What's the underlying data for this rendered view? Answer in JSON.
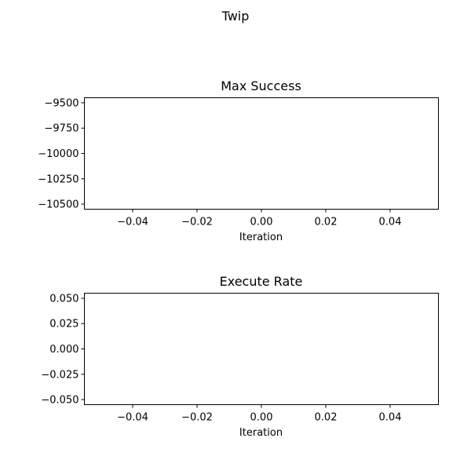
{
  "figure": {
    "title": "Twip"
  },
  "chart_data": [
    {
      "type": "line",
      "title": "Max Success",
      "xlabel": "Iteration",
      "ylabel": "",
      "xlim": [
        -0.055,
        0.055
      ],
      "ylim": [
        -10550,
        -9450
      ],
      "xticks": [
        -0.04,
        -0.02,
        0.0,
        0.02,
        0.04
      ],
      "xtick_labels": [
        "−0.04",
        "−0.02",
        "0.00",
        "0.02",
        "0.04"
      ],
      "yticks": [
        -9500,
        -9750,
        -10000,
        -10250,
        -10500
      ],
      "ytick_labels": [
        "−9500",
        "−9750",
        "−10000",
        "−10250",
        "−10500"
      ],
      "series": [],
      "grid": false
    },
    {
      "type": "line",
      "title": "Execute Rate",
      "xlabel": "Iteration",
      "ylabel": "",
      "xlim": [
        -0.055,
        0.055
      ],
      "ylim": [
        -0.055,
        0.055
      ],
      "xticks": [
        -0.04,
        -0.02,
        0.0,
        0.02,
        0.04
      ],
      "xtick_labels": [
        "−0.04",
        "−0.02",
        "0.00",
        "0.02",
        "0.04"
      ],
      "yticks": [
        0.05,
        0.025,
        0.0,
        -0.025,
        -0.05
      ],
      "ytick_labels": [
        "0.050",
        "0.025",
        "0.000",
        "−0.025",
        "−0.050"
      ],
      "series": [],
      "grid": false
    }
  ]
}
